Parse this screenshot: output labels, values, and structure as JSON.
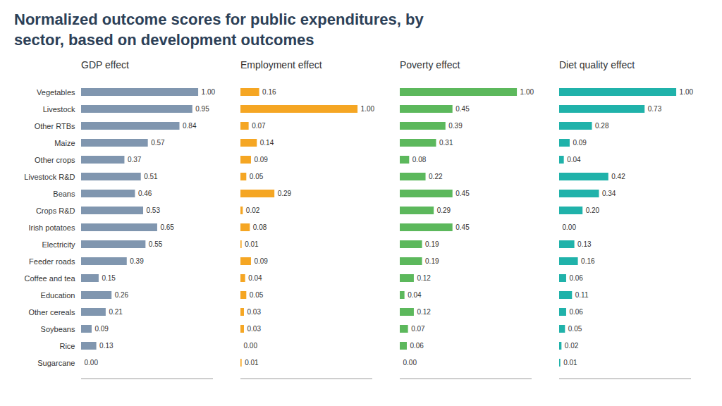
{
  "chart_data": {
    "type": "bar",
    "orientation": "horizontal",
    "title": "Normalized outcome scores for public expenditures, by\nsector, based on development outcomes",
    "categories": [
      "Vegetables",
      "Livestock",
      "Other RTBs",
      "Maize",
      "Other crops",
      "Livestock R&D",
      "Beans",
      "Crops R&D",
      "Irish potatoes",
      "Electricity",
      "Feeder roads",
      "Coffee and tea",
      "Education",
      "Other cereals",
      "Soybeans",
      "Rice",
      "Sugarcane"
    ],
    "series": [
      {
        "name": "GDP effect",
        "color": "#8096af",
        "values": [
          1.0,
          0.95,
          0.84,
          0.57,
          0.37,
          0.51,
          0.46,
          0.53,
          0.65,
          0.55,
          0.39,
          0.15,
          0.26,
          0.21,
          0.09,
          0.13,
          0.0
        ],
        "value_labels": [
          "1.00",
          "0.95",
          "0.84",
          "0.57",
          "0.37",
          "0.51",
          "0.46",
          "0.53",
          "0.65",
          "0.55",
          "0.39",
          "0.15",
          "0.26",
          "0.21",
          "0.09",
          "0.13",
          "0.00"
        ]
      },
      {
        "name": "Employment effect",
        "color": "#f5a623",
        "values": [
          0.16,
          1.0,
          0.07,
          0.14,
          0.09,
          0.05,
          0.29,
          0.02,
          0.08,
          0.01,
          0.09,
          0.04,
          0.05,
          0.03,
          0.03,
          0.0,
          0.01
        ],
        "value_labels": [
          "0.16",
          "1.00",
          "0.07",
          "0.14",
          "0.09",
          "0.05",
          "0.29",
          "0.02",
          "0.08",
          "0.01",
          "0.09",
          "0.04",
          "0.05",
          "0.03",
          "0.03",
          "0.00",
          "0.01"
        ]
      },
      {
        "name": "Poverty effect",
        "color": "#5cb85c",
        "values": [
          1.0,
          0.45,
          0.39,
          0.31,
          0.08,
          0.22,
          0.45,
          0.29,
          0.45,
          0.19,
          0.19,
          0.12,
          0.04,
          0.12,
          0.07,
          0.06,
          0.0
        ],
        "value_labels": [
          "1.00",
          "0.45",
          "0.39",
          "0.31",
          "0.08",
          "0.22",
          "0.45",
          "0.29",
          "0.45",
          "0.19",
          "0.19",
          "0.12",
          "0.04",
          "0.12",
          "0.07",
          "0.06",
          "0.00"
        ]
      },
      {
        "name": "Diet quality effect",
        "color": "#20b2aa",
        "values": [
          1.0,
          0.73,
          0.28,
          0.09,
          0.04,
          0.42,
          0.34,
          0.2,
          0.0,
          0.13,
          0.16,
          0.06,
          0.11,
          0.06,
          0.05,
          0.02,
          0.01
        ],
        "value_labels": [
          "1.00",
          "0.73",
          "0.28",
          "0.09",
          "0.04",
          "0.42",
          "0.34",
          "0.20",
          "0.00",
          "0.13",
          "0.16",
          "0.06",
          "0.11",
          "0.06",
          "0.05",
          "0.02",
          "0.01"
        ]
      }
    ],
    "xlim": [
      0,
      1.12
    ],
    "tick_labels": "y",
    "data_labels": true,
    "grid": false
  }
}
